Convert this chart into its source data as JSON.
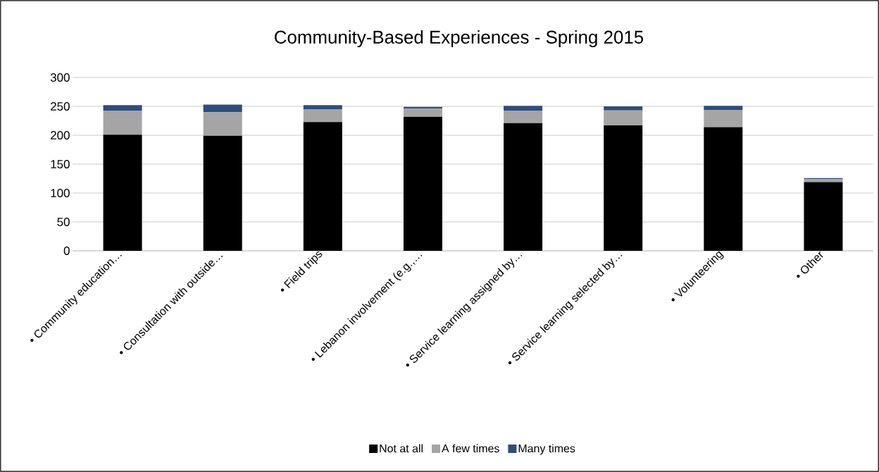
{
  "chart_data": {
    "type": "bar",
    "title": "Community-Based Experiences - Spring 2015",
    "categories": [
      "• Community education…",
      "• Consultation with outside…",
      "• Field trips",
      "• Lebanon involvement (e.g.,…",
      "• Service learning assigned by…",
      "• Service learning selected by…",
      "• Volunteering",
      "• Other"
    ],
    "series": [
      {
        "name": "Not at all",
        "color": "#000000",
        "values": [
          201,
          199,
          223,
          232,
          221,
          217,
          214,
          119
        ]
      },
      {
        "name": "A few times",
        "color": "#a5a5a5",
        "values": [
          41,
          41,
          22,
          14,
          21,
          26,
          30,
          5
        ]
      },
      {
        "name": "Many times",
        "color": "#2e4d7b",
        "values": [
          10,
          13,
          7,
          3,
          9,
          7,
          7,
          2
        ]
      }
    ],
    "stacked": true,
    "ylim": [
      0,
      300
    ],
    "yticks": [
      0,
      50,
      100,
      150,
      200,
      250,
      300
    ],
    "grid": "y",
    "legend": "bottom"
  }
}
